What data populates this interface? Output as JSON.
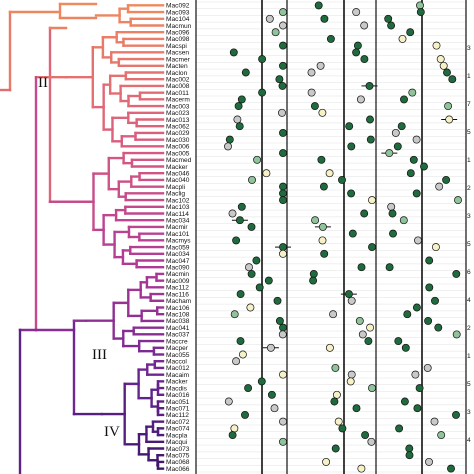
{
  "clade_labels": [
    "II",
    "III",
    "IV"
  ],
  "taxa": [
    "Mac092",
    "Mac093",
    "Mac104",
    "Macmun",
    "Mac096",
    "Mac098",
    "Macspi",
    "Macsen",
    "Macmer",
    "Macten",
    "Maclon",
    "Mac002",
    "Mac008",
    "Mac011",
    "Macerm",
    "Mac003",
    "Mac023",
    "Mac013",
    "Mac062",
    "Mac029",
    "Mac030",
    "Mac006",
    "Mac005",
    "Macmed",
    "Macker",
    "Mac046",
    "Mac040",
    "Macpli",
    "Maclig",
    "Mac102",
    "Mac103",
    "Mac114",
    "Mac034",
    "Macmir",
    "Mac101",
    "Macmys",
    "Mac059",
    "Mac034",
    "Mac047",
    "Mac090",
    "Macmin",
    "Mac009",
    "Mac112",
    "Mac116",
    "Macham",
    "Mac106",
    "Mac108",
    "Mac038",
    "Mac041",
    "Mac037",
    "Maccre",
    "Macper",
    "Mac055",
    "Maccol",
    "Mac012",
    "Macaim",
    "Macker",
    "Macdis",
    "Mac016",
    "Mac051",
    "Mac071",
    "Mac112",
    "Mac072",
    "Mac074",
    "Macpla",
    "Macqui",
    "Mac073",
    "Mac075",
    "Mac068",
    "Mac066"
  ],
  "right_labels": [
    "3",
    "1",
    "7",
    "5",
    "1",
    "2",
    "3",
    "5",
    "6",
    "4",
    "2",
    "1",
    "5",
    "3",
    "4"
  ],
  "colors": {
    "dot_dark": "#1f6b3d",
    "dot_mid": "#8fc49a",
    "dot_pale": "#f6f1c6",
    "dot_grey": "#c9c9c9",
    "tree_gradient": [
      "#f7a660",
      "#e86a6a",
      "#c0459b",
      "#7a2a8c",
      "#3f1670"
    ]
  }
}
